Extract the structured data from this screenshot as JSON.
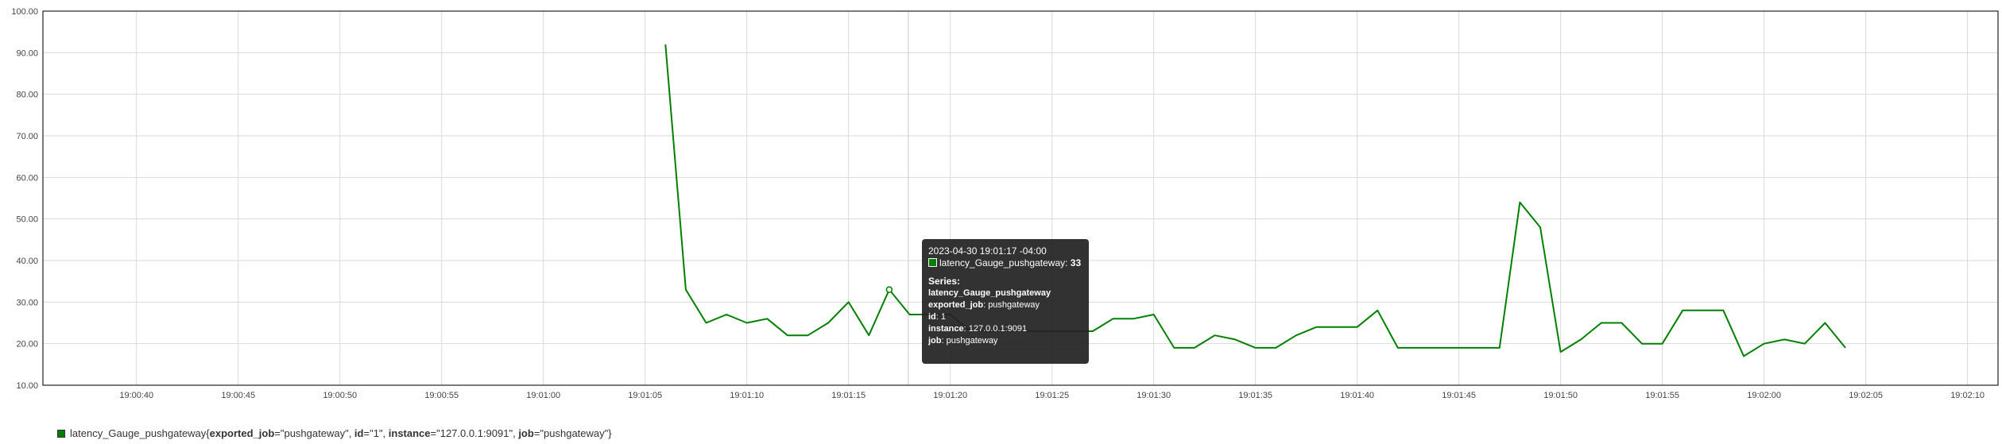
{
  "chart_data": {
    "type": "line",
    "x_unit": "time (HH:MM:SS)",
    "x_ticks": [
      "19:00:40",
      "19:00:45",
      "19:00:50",
      "19:00:55",
      "19:01:00",
      "19:01:05",
      "19:01:10",
      "19:01:15",
      "19:01:20",
      "19:01:25",
      "19:01:30",
      "19:01:35",
      "19:01:40",
      "19:01:45",
      "19:01:50",
      "19:01:55",
      "19:02:00",
      "19:02:05",
      "19:02:10"
    ],
    "x_range": [
      "19:00:35.4",
      "19:02:11.5"
    ],
    "y_ticks": [
      "100.00",
      "90.00",
      "80.00",
      "70.00",
      "60.00",
      "50.00",
      "40.00",
      "30.00",
      "20.00",
      "10.00"
    ],
    "ylim": [
      10,
      100
    ],
    "grid": true,
    "series": [
      {
        "name": "latency_Gauge_pushgateway",
        "color": "#008000",
        "x": [
          "19:01:06",
          "19:01:07",
          "19:01:08",
          "19:01:09",
          "19:01:10",
          "19:01:11",
          "19:01:12",
          "19:01:13",
          "19:01:14",
          "19:01:15",
          "19:01:16",
          "19:01:17",
          "19:01:18",
          "19:01:19",
          "19:01:20",
          "19:01:21",
          "19:01:22",
          "19:01:23",
          "19:01:24",
          "19:01:25",
          "19:01:26",
          "19:01:27",
          "19:01:28",
          "19:01:29",
          "19:01:30",
          "19:01:31",
          "19:01:32",
          "19:01:33",
          "19:01:34",
          "19:01:35",
          "19:01:36",
          "19:01:37",
          "19:01:38",
          "19:01:39",
          "19:01:40",
          "19:01:41",
          "19:01:42",
          "19:01:43",
          "19:01:44",
          "19:01:45",
          "19:01:46",
          "19:01:47",
          "19:01:48",
          "19:01:49",
          "19:01:50",
          "19:01:51",
          "19:01:52",
          "19:01:53",
          "19:01:54",
          "19:01:55",
          "19:01:56",
          "19:01:57",
          "19:01:58",
          "19:01:59",
          "19:02:00",
          "19:02:01",
          "19:02:02",
          "19:02:03",
          "19:02:04"
        ],
        "values": [
          92,
          33,
          25,
          27,
          25,
          26,
          22,
          22,
          25,
          30,
          22,
          33,
          27,
          27,
          27,
          23,
          23,
          23,
          23,
          23,
          23,
          23,
          26,
          26,
          27,
          19,
          19,
          22,
          21,
          19,
          19,
          22,
          24,
          24,
          24,
          28,
          19,
          19,
          19,
          19,
          19,
          19,
          54,
          48,
          18,
          21,
          25,
          25,
          20,
          20,
          28,
          28,
          28,
          17,
          20,
          21,
          20,
          25,
          19
        ]
      }
    ],
    "hover": {
      "x": "19:01:17",
      "value": 33
    }
  },
  "tooltip": {
    "timestamp": "2023-04-30 19:01:17 -04:00",
    "series_name": "latency_Gauge_pushgateway",
    "series_value": "33",
    "series_heading": "Series:",
    "metric_name": "latency_Gauge_pushgateway",
    "labels": [
      {
        "key": "exported_job",
        "value": "pushgateway"
      },
      {
        "key": "id",
        "value": "1"
      },
      {
        "key": "instance",
        "value": "127.0.0.1:9091"
      },
      {
        "key": "job",
        "value": "pushgateway"
      }
    ]
  },
  "legend": {
    "metric": "latency_Gauge_pushgateway",
    "labels": [
      {
        "key": "exported_job",
        "value": "pushgateway"
      },
      {
        "key": "id",
        "value": "1"
      },
      {
        "key": "instance",
        "value": "127.0.0.1:9091"
      },
      {
        "key": "job",
        "value": "pushgateway"
      }
    ]
  }
}
